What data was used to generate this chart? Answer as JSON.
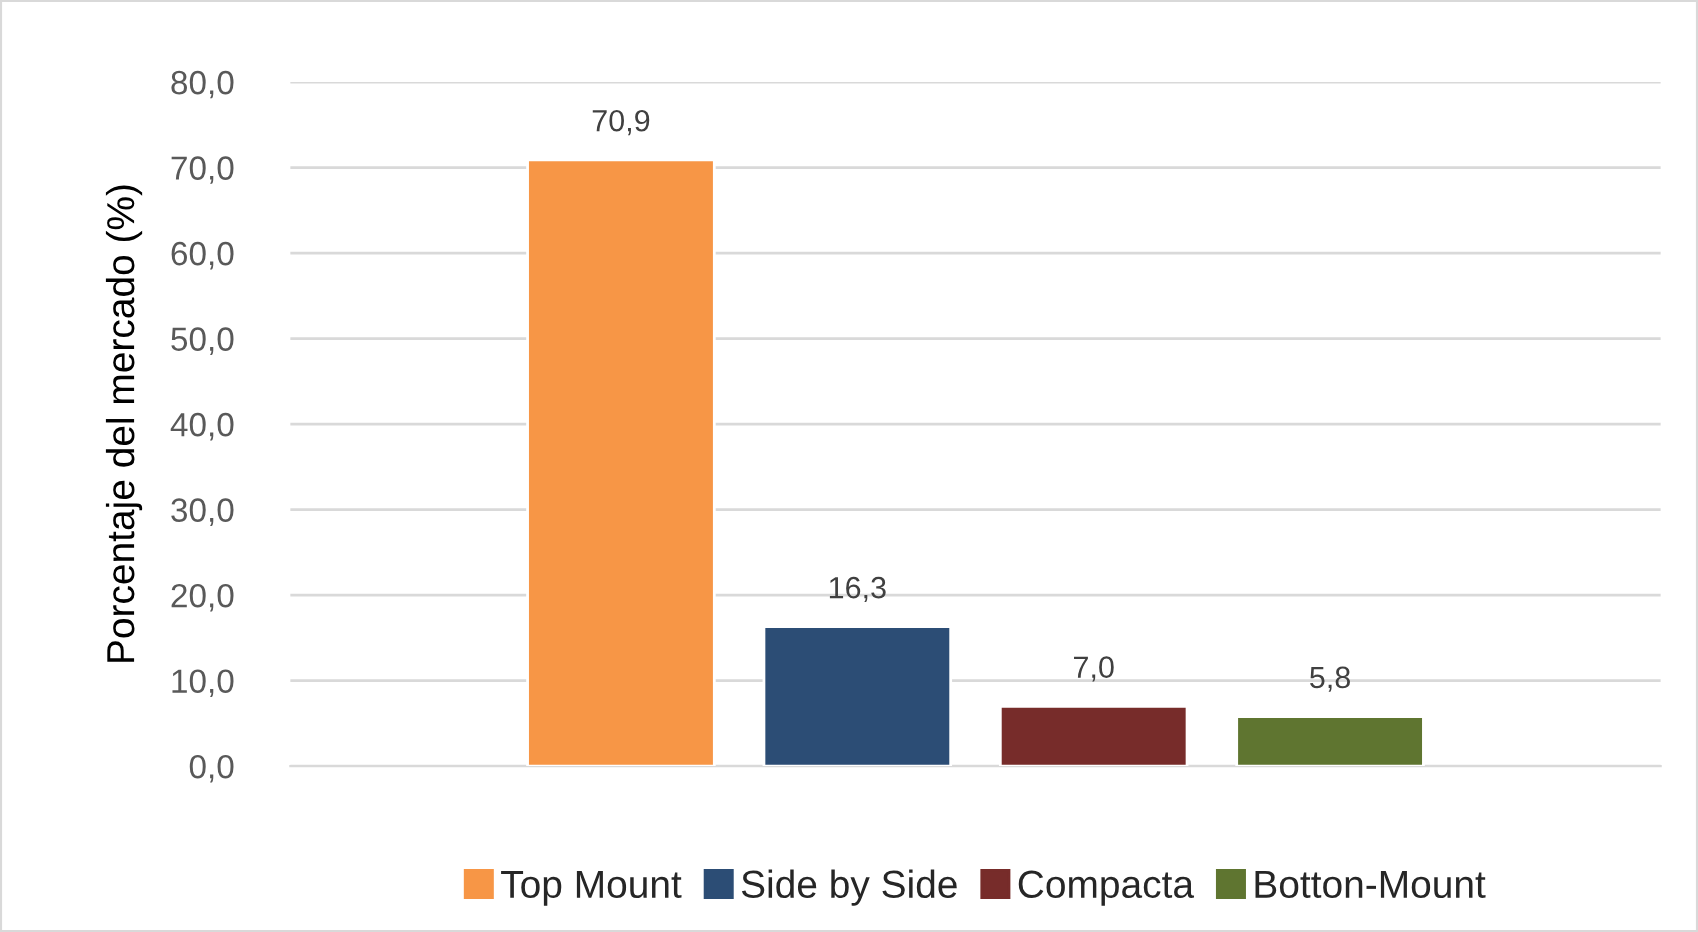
{
  "chart_data": {
    "type": "bar",
    "ylabel": "Porcentaje del mercado (%)",
    "categories": [
      null
    ],
    "series": [
      {
        "name": "Top Mount",
        "color": "#f79646",
        "values": [
          70.9
        ]
      },
      {
        "name": "Side by Side",
        "color": "#2c4d75",
        "values": [
          16.3
        ]
      },
      {
        "name": "Compacta",
        "color": "#772c2a",
        "values": [
          7.0
        ]
      },
      {
        "name": "Botton-Mount",
        "color": "#5f7530",
        "values": [
          5.8
        ]
      }
    ],
    "ylim": [
      0,
      80
    ],
    "yticks": [
      {
        "value": 0,
        "label": "0,0"
      },
      {
        "value": 10,
        "label": "10,0"
      },
      {
        "value": 20,
        "label": "20,0"
      },
      {
        "value": 30,
        "label": "30,0"
      },
      {
        "value": 40,
        "label": "40,0"
      },
      {
        "value": 50,
        "label": "50,0"
      },
      {
        "value": 60,
        "label": "60,0"
      },
      {
        "value": 70,
        "label": "70,0"
      },
      {
        "value": 80,
        "label": "80,0"
      }
    ],
    "value_labels": [
      "70,9",
      "16,3",
      "7,0",
      "5,8"
    ],
    "grid": "y",
    "legend": "bottom"
  }
}
